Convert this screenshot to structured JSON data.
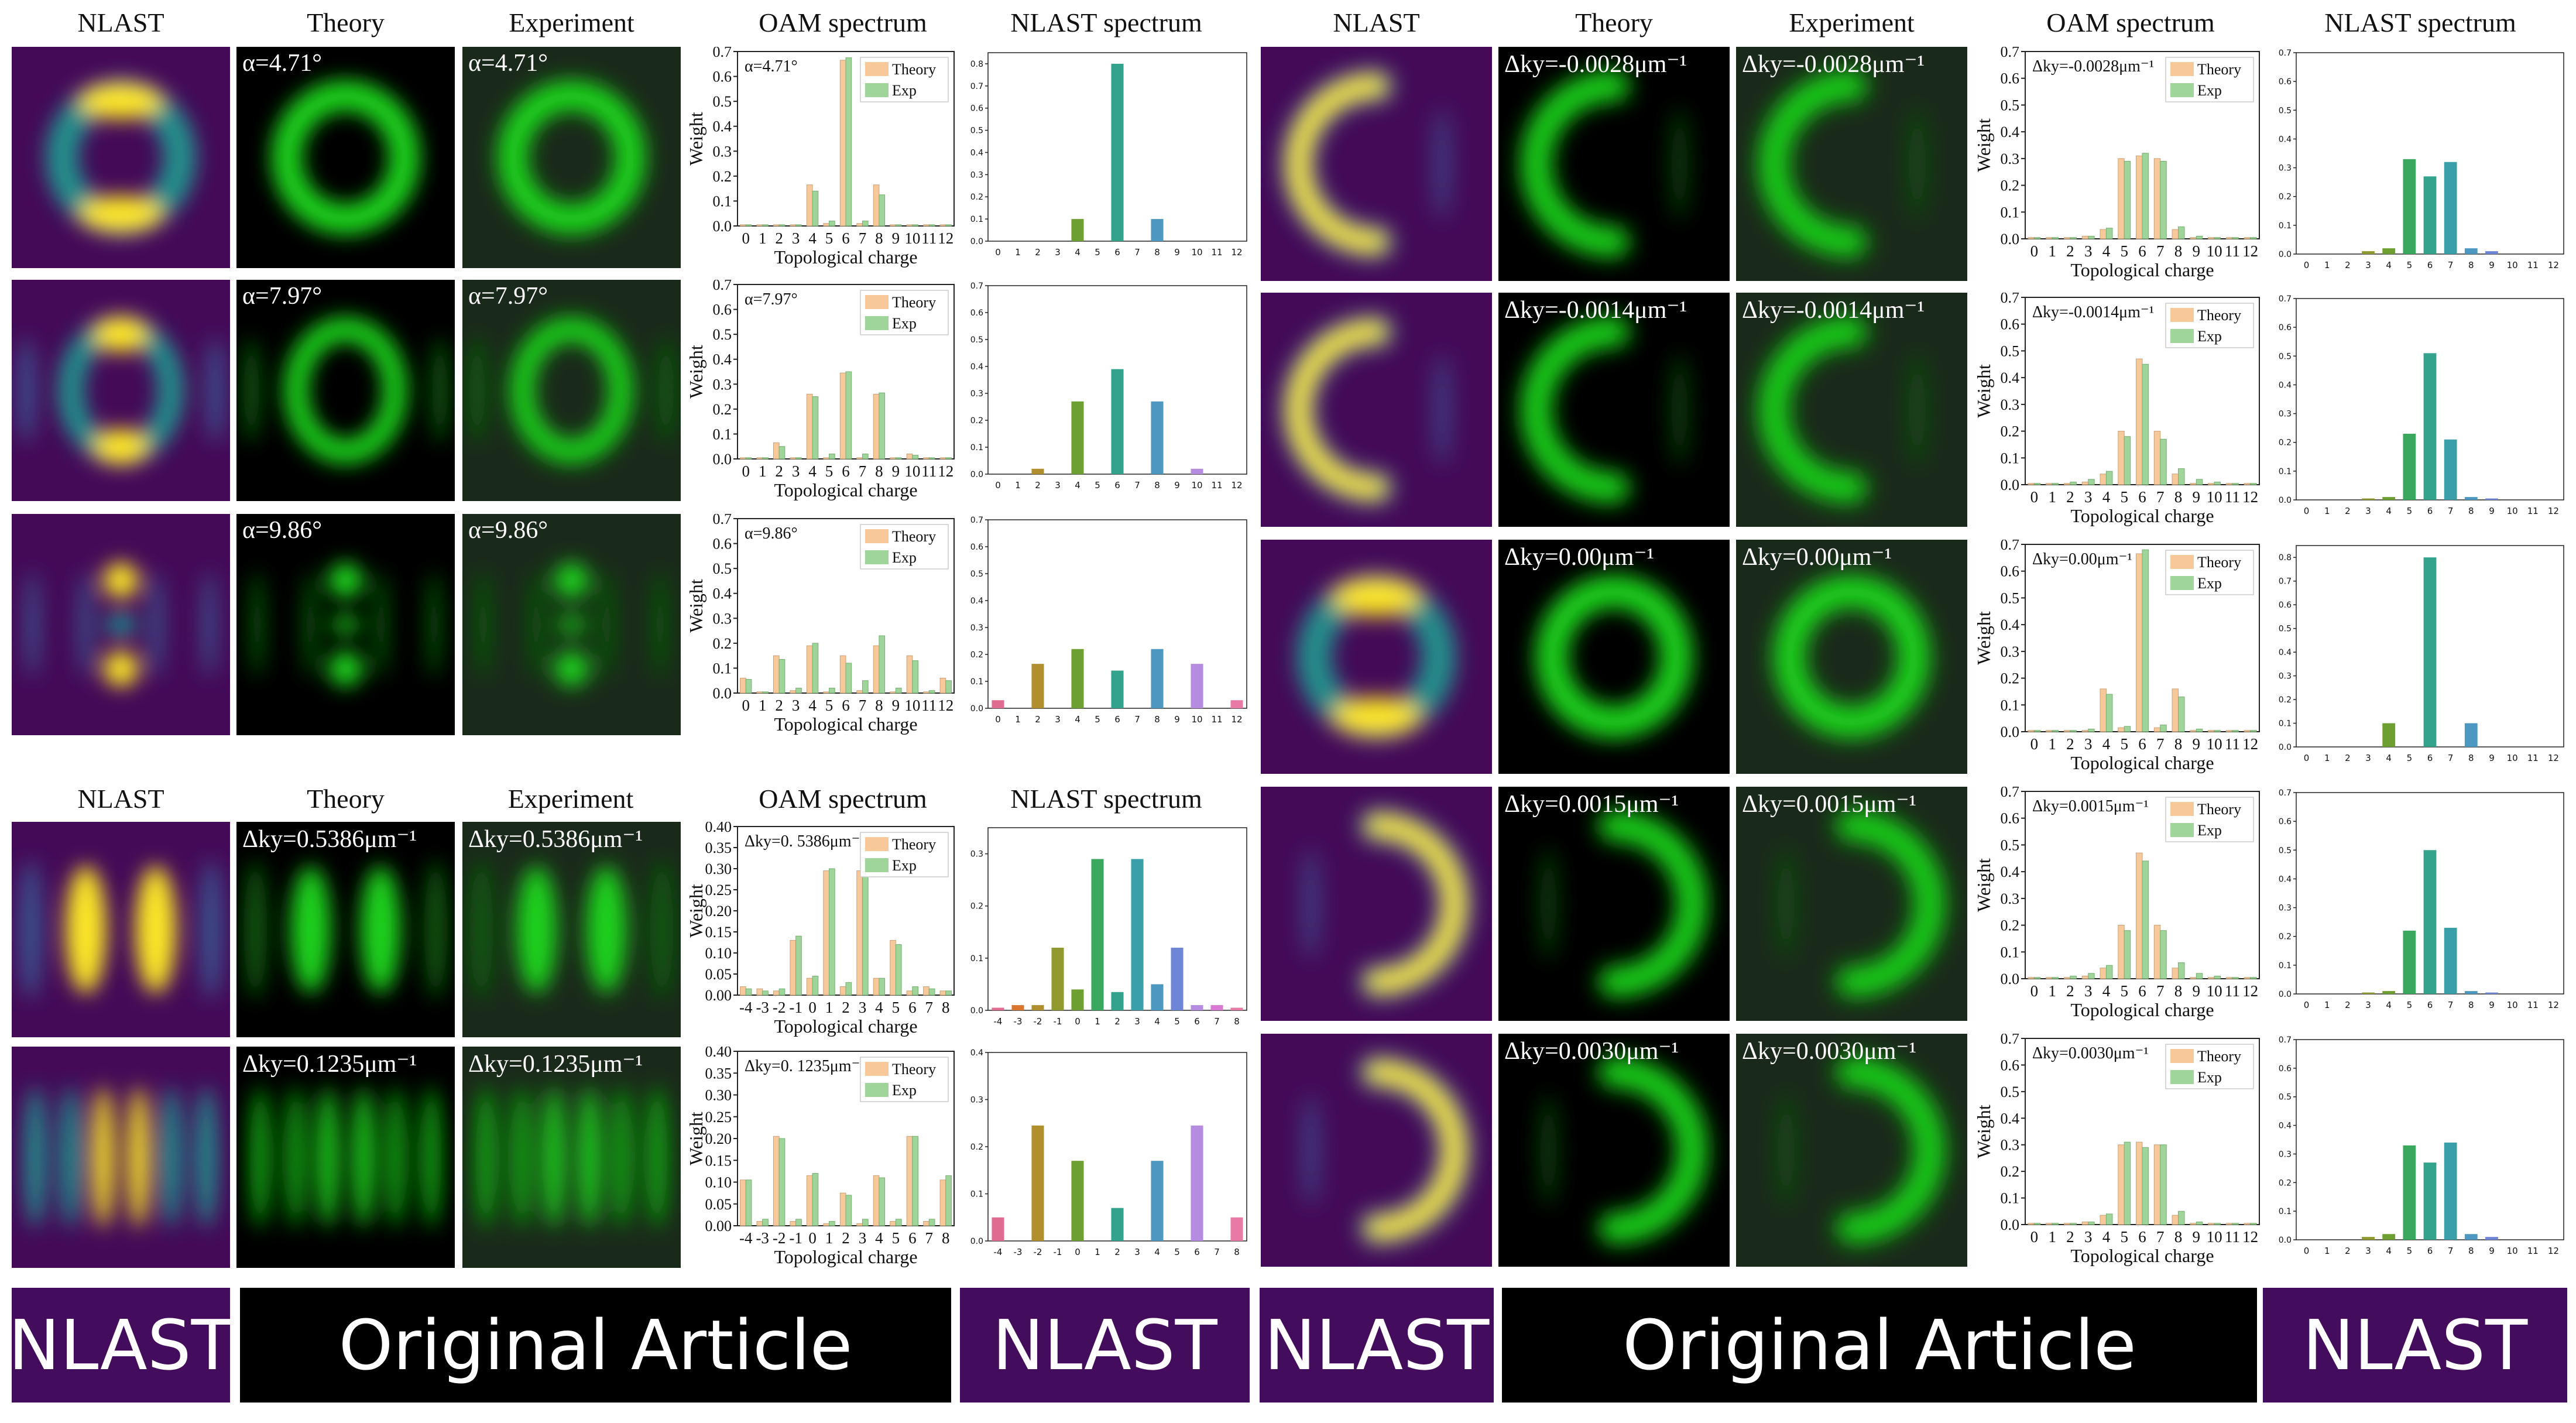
{
  "headers": {
    "nlast": "NLAST",
    "theory": "Theory",
    "experiment": "Experiment",
    "oam": "OAM spectrum",
    "nlast_spec": "NLAST spectrum"
  },
  "axis": {
    "ylabel": "Weight",
    "xlabel": "Topological charge",
    "legend_theory": "Theory",
    "legend_exp": "Exp"
  },
  "chart_data": [
    {
      "type": "bar",
      "panel": "alpha-1",
      "title": "α=4.71°",
      "ylim": [
        0,
        0.7
      ],
      "yticks": [
        "0.0",
        "0.1",
        "0.2",
        "0.3",
        "0.4",
        "0.5",
        "0.6",
        "0.7"
      ],
      "categories": [
        "0",
        "1",
        "2",
        "3",
        "4",
        "5",
        "6",
        "7",
        "8",
        "9",
        "10",
        "11",
        "12"
      ],
      "series": [
        {
          "name": "Theory",
          "values": [
            0.005,
            0.005,
            0.005,
            0.005,
            0.165,
            0.01,
            0.665,
            0.01,
            0.165,
            0.005,
            0.005,
            0.005,
            0.005
          ]
        },
        {
          "name": "Exp",
          "values": [
            0.005,
            0.005,
            0.005,
            0.005,
            0.14,
            0.02,
            0.675,
            0.02,
            0.125,
            0.005,
            0.005,
            0.005,
            0.005
          ]
        }
      ],
      "nlast": {
        "ylim": [
          0,
          0.85
        ],
        "yticks": [
          "0.0",
          "0.1",
          "0.2",
          "0.3",
          "0.4",
          "0.5",
          "0.6",
          "0.7",
          "0.8"
        ],
        "values": [
          0,
          0,
          0,
          0,
          0.1,
          0,
          0.8,
          0,
          0.1,
          0,
          0,
          0,
          0
        ]
      }
    },
    {
      "type": "bar",
      "panel": "alpha-2",
      "title": "α=7.97°",
      "ylim": [
        0,
        0.7
      ],
      "yticks": [
        "0.0",
        "0.1",
        "0.2",
        "0.3",
        "0.4",
        "0.5",
        "0.6",
        "0.7"
      ],
      "categories": [
        "0",
        "1",
        "2",
        "3",
        "4",
        "5",
        "6",
        "7",
        "8",
        "9",
        "10",
        "11",
        "12"
      ],
      "series": [
        {
          "name": "Theory",
          "values": [
            0.005,
            0.005,
            0.065,
            0.005,
            0.26,
            0.005,
            0.345,
            0.005,
            0.26,
            0.005,
            0.02,
            0.005,
            0.005
          ]
        },
        {
          "name": "Exp",
          "values": [
            0.005,
            0.005,
            0.05,
            0.005,
            0.25,
            0.02,
            0.35,
            0.02,
            0.265,
            0.005,
            0.015,
            0.005,
            0.005
          ]
        }
      ],
      "nlast": {
        "ylim": [
          0,
          0.7
        ],
        "yticks": [
          "0.0",
          "0.1",
          "0.2",
          "0.3",
          "0.4",
          "0.5",
          "0.6",
          "0.7"
        ],
        "values": [
          0,
          0,
          0.02,
          0,
          0.27,
          0,
          0.39,
          0,
          0.27,
          0,
          0.02,
          0,
          0
        ]
      }
    },
    {
      "type": "bar",
      "panel": "alpha-3",
      "title": "α=9.86°",
      "ylim": [
        0,
        0.7
      ],
      "yticks": [
        "0.0",
        "0.1",
        "0.2",
        "0.3",
        "0.4",
        "0.5",
        "0.6",
        "0.7"
      ],
      "categories": [
        "0",
        "1",
        "2",
        "3",
        "4",
        "5",
        "6",
        "7",
        "8",
        "9",
        "10",
        "11",
        "12"
      ],
      "series": [
        {
          "name": "Theory",
          "values": [
            0.06,
            0.005,
            0.15,
            0.01,
            0.19,
            0.005,
            0.15,
            0.01,
            0.19,
            0.005,
            0.15,
            0.005,
            0.06
          ]
        },
        {
          "name": "Exp",
          "values": [
            0.055,
            0.005,
            0.135,
            0.02,
            0.2,
            0.02,
            0.12,
            0.05,
            0.23,
            0.02,
            0.13,
            0.01,
            0.05
          ]
        }
      ],
      "nlast": {
        "ylim": [
          0,
          0.7
        ],
        "yticks": [
          "0.0",
          "0.1",
          "0.2",
          "0.3",
          "0.4",
          "0.5",
          "0.6",
          "0.7"
        ],
        "values": [
          0.03,
          0,
          0.165,
          0,
          0.22,
          0,
          0.14,
          0,
          0.22,
          0,
          0.165,
          0,
          0.03
        ]
      }
    },
    {
      "type": "bar",
      "panel": "dky-1",
      "title": "Δky=0. 5386μm⁻¹",
      "ylim": [
        0,
        0.4
      ],
      "yticks": [
        "0.00",
        "0.05",
        "0.10",
        "0.15",
        "0.20",
        "0.25",
        "0.30",
        "0.35",
        "0.40"
      ],
      "categories": [
        "-4",
        "-3",
        "-2",
        "-1",
        "0",
        "1",
        "2",
        "3",
        "4",
        "5",
        "6",
        "7",
        "8"
      ],
      "series": [
        {
          "name": "Theory",
          "values": [
            0.02,
            0.015,
            0.01,
            0.13,
            0.04,
            0.295,
            0.02,
            0.295,
            0.04,
            0.13,
            0.01,
            0.02,
            0.01
          ]
        },
        {
          "name": "Exp",
          "values": [
            0.015,
            0.01,
            0.015,
            0.14,
            0.045,
            0.3,
            0.03,
            0.29,
            0.04,
            0.12,
            0.02,
            0.015,
            0.01
          ]
        }
      ],
      "nlast": {
        "ylim": [
          0,
          0.35
        ],
        "yticks": [
          "0.0",
          "0.1",
          "0.2",
          "0.3"
        ],
        "values": [
          0.005,
          0.01,
          0.01,
          0.12,
          0.04,
          0.29,
          0.035,
          0.29,
          0.05,
          0.12,
          0.01,
          0.01,
          0.005
        ]
      }
    },
    {
      "type": "bar",
      "panel": "dky-2",
      "title": "Δky=0. 1235μm⁻¹",
      "ylim": [
        0,
        0.4
      ],
      "yticks": [
        "0.00",
        "0.05",
        "0.10",
        "0.15",
        "0.20",
        "0.25",
        "0.30",
        "0.35",
        "0.40"
      ],
      "categories": [
        "-4",
        "-3",
        "-2",
        "-1",
        "0",
        "1",
        "2",
        "3",
        "4",
        "5",
        "6",
        "7",
        "8"
      ],
      "series": [
        {
          "name": "Theory",
          "values": [
            0.105,
            0.01,
            0.205,
            0.01,
            0.115,
            0.005,
            0.075,
            0.005,
            0.115,
            0.01,
            0.205,
            0.01,
            0.105
          ]
        },
        {
          "name": "Exp",
          "values": [
            0.105,
            0.015,
            0.2,
            0.015,
            0.12,
            0.01,
            0.07,
            0.015,
            0.11,
            0.015,
            0.205,
            0.015,
            0.115
          ]
        }
      ],
      "nlast": {
        "ylim": [
          0,
          0.4
        ],
        "yticks": [
          "0.0",
          "0.1",
          "0.2",
          "0.3",
          "0.4"
        ],
        "values": [
          0.05,
          0,
          0.245,
          0,
          0.17,
          0,
          0.07,
          0,
          0.17,
          0,
          0.245,
          0,
          0.05
        ]
      }
    },
    {
      "type": "bar",
      "panel": "r-1",
      "title": "Δky=-0.0028μm⁻¹",
      "ylim": [
        0,
        0.7
      ],
      "yticks": [
        "0.0",
        "0.1",
        "0.2",
        "0.3",
        "0.4",
        "0.5",
        "0.6",
        "0.7"
      ],
      "categories": [
        "0",
        "1",
        "2",
        "3",
        "4",
        "5",
        "6",
        "7",
        "8",
        "9",
        "10",
        "11",
        "12"
      ],
      "series": [
        {
          "name": "Theory",
          "values": [
            0.005,
            0.005,
            0.005,
            0.01,
            0.035,
            0.3,
            0.31,
            0.3,
            0.035,
            0.005,
            0.005,
            0.005,
            0.005
          ]
        },
        {
          "name": "Exp",
          "values": [
            0.005,
            0.005,
            0.005,
            0.01,
            0.04,
            0.29,
            0.32,
            0.29,
            0.045,
            0.01,
            0.005,
            0.005,
            0.005
          ]
        }
      ],
      "nlast": {
        "ylim": [
          0,
          0.7
        ],
        "yticks": [
          "0.0",
          "0.1",
          "0.2",
          "0.3",
          "0.4",
          "0.5",
          "0.6",
          "0.7"
        ],
        "values": [
          0,
          0,
          0,
          0.01,
          0.02,
          0.33,
          0.27,
          0.32,
          0.02,
          0.01,
          0,
          0,
          0
        ]
      }
    },
    {
      "type": "bar",
      "panel": "r-2",
      "title": "Δky=-0.0014μm⁻¹",
      "ylim": [
        0,
        0.7
      ],
      "yticks": [
        "0.0",
        "0.1",
        "0.2",
        "0.3",
        "0.4",
        "0.5",
        "0.6",
        "0.7"
      ],
      "categories": [
        "0",
        "1",
        "2",
        "3",
        "4",
        "5",
        "6",
        "7",
        "8",
        "9",
        "10",
        "11",
        "12"
      ],
      "series": [
        {
          "name": "Theory",
          "values": [
            0.005,
            0.005,
            0.005,
            0.01,
            0.04,
            0.2,
            0.47,
            0.2,
            0.04,
            0.005,
            0.005,
            0.005,
            0.005
          ]
        },
        {
          "name": "Exp",
          "values": [
            0.005,
            0.005,
            0.01,
            0.02,
            0.05,
            0.18,
            0.45,
            0.17,
            0.06,
            0.02,
            0.01,
            0.005,
            0.005
          ]
        }
      ],
      "nlast": {
        "ylim": [
          0,
          0.7
        ],
        "yticks": [
          "0.0",
          "0.1",
          "0.2",
          "0.3",
          "0.4",
          "0.5",
          "0.6",
          "0.7"
        ],
        "values": [
          0,
          0,
          0,
          0.005,
          0.01,
          0.23,
          0.51,
          0.21,
          0.01,
          0.005,
          0,
          0,
          0
        ]
      }
    },
    {
      "type": "bar",
      "panel": "r-3",
      "title": "Δky=0.00μm⁻¹",
      "ylim": [
        0,
        0.7
      ],
      "yticks": [
        "0.0",
        "0.1",
        "0.2",
        "0.3",
        "0.4",
        "0.5",
        "0.6",
        "0.7"
      ],
      "categories": [
        "0",
        "1",
        "2",
        "3",
        "4",
        "5",
        "6",
        "7",
        "8",
        "9",
        "10",
        "11",
        "12"
      ],
      "series": [
        {
          "name": "Theory",
          "values": [
            0.005,
            0.005,
            0.005,
            0.005,
            0.16,
            0.015,
            0.665,
            0.015,
            0.16,
            0.005,
            0.005,
            0.005,
            0.005
          ]
        },
        {
          "name": "Exp",
          "values": [
            0.005,
            0.005,
            0.005,
            0.01,
            0.14,
            0.02,
            0.68,
            0.025,
            0.13,
            0.01,
            0.005,
            0.005,
            0.005
          ]
        }
      ],
      "nlast": {
        "ylim": [
          0,
          0.85
        ],
        "yticks": [
          "0.0",
          "0.1",
          "0.2",
          "0.3",
          "0.4",
          "0.5",
          "0.6",
          "0.7",
          "0.8"
        ],
        "values": [
          0,
          0,
          0,
          0,
          0.1,
          0,
          0.8,
          0,
          0.1,
          0,
          0,
          0,
          0
        ]
      }
    },
    {
      "type": "bar",
      "panel": "r-4",
      "title": "Δky=0.0015μm⁻¹",
      "ylim": [
        0,
        0.7
      ],
      "yticks": [
        "0.0",
        "0.1",
        "0.2",
        "0.3",
        "0.4",
        "0.5",
        "0.6",
        "0.7"
      ],
      "categories": [
        "0",
        "1",
        "2",
        "3",
        "4",
        "5",
        "6",
        "7",
        "8",
        "9",
        "10",
        "11",
        "12"
      ],
      "series": [
        {
          "name": "Theory",
          "values": [
            0.005,
            0.005,
            0.005,
            0.01,
            0.04,
            0.2,
            0.47,
            0.2,
            0.04,
            0.005,
            0.005,
            0.005,
            0.005
          ]
        },
        {
          "name": "Exp",
          "values": [
            0.005,
            0.005,
            0.01,
            0.02,
            0.05,
            0.18,
            0.44,
            0.18,
            0.06,
            0.02,
            0.01,
            0.005,
            0.005
          ]
        }
      ],
      "nlast": {
        "ylim": [
          0,
          0.7
        ],
        "yticks": [
          "0.0",
          "0.1",
          "0.2",
          "0.3",
          "0.4",
          "0.5",
          "0.6",
          "0.7"
        ],
        "values": [
          0,
          0,
          0,
          0.005,
          0.01,
          0.22,
          0.5,
          0.23,
          0.01,
          0.005,
          0,
          0,
          0
        ]
      }
    },
    {
      "type": "bar",
      "panel": "r-5",
      "title": "Δky=0.0030μm⁻¹",
      "ylim": [
        0,
        0.7
      ],
      "yticks": [
        "0.0",
        "0.1",
        "0.2",
        "0.3",
        "0.4",
        "0.5",
        "0.6",
        "0.7"
      ],
      "categories": [
        "0",
        "1",
        "2",
        "3",
        "4",
        "5",
        "6",
        "7",
        "8",
        "9",
        "10",
        "11",
        "12"
      ],
      "series": [
        {
          "name": "Theory",
          "values": [
            0.005,
            0.005,
            0.005,
            0.01,
            0.035,
            0.3,
            0.31,
            0.3,
            0.035,
            0.005,
            0.005,
            0.005,
            0.005
          ]
        },
        {
          "name": "Exp",
          "values": [
            0.005,
            0.005,
            0.005,
            0.01,
            0.04,
            0.31,
            0.29,
            0.3,
            0.05,
            0.01,
            0.005,
            0.005,
            0.005
          ]
        }
      ],
      "nlast": {
        "ylim": [
          0,
          0.7
        ],
        "yticks": [
          "0.0",
          "0.1",
          "0.2",
          "0.3",
          "0.4",
          "0.5",
          "0.6",
          "0.7"
        ],
        "values": [
          0,
          0,
          0,
          0.01,
          0.02,
          0.33,
          0.27,
          0.34,
          0.02,
          0.01,
          0,
          0,
          0
        ]
      }
    }
  ],
  "images": [
    {
      "panel": "alpha-1",
      "label": "α=4.71°",
      "pattern": "ring"
    },
    {
      "panel": "alpha-2",
      "label": "α=7.97°",
      "pattern": "ring2"
    },
    {
      "panel": "alpha-3",
      "label": "α=9.86°",
      "pattern": "dots"
    },
    {
      "panel": "dky-1",
      "label": "Δky=0.5386μm⁻¹",
      "pattern": "split"
    },
    {
      "panel": "dky-2",
      "label": "Δky=0.1235μm⁻¹",
      "pattern": "grid"
    },
    {
      "panel": "r-1",
      "label": "Δky=-0.0028μm⁻¹",
      "pattern": "crescent-left"
    },
    {
      "panel": "r-2",
      "label": "Δky=-0.0014μm⁻¹",
      "pattern": "crescent-left"
    },
    {
      "panel": "r-3",
      "label": "Δky=0.00μm⁻¹",
      "pattern": "ring"
    },
    {
      "panel": "r-4",
      "label": "Δky=0.0015μm⁻¹",
      "pattern": "crescent-right"
    },
    {
      "panel": "r-5",
      "label": "Δky=0.0030μm⁻¹",
      "pattern": "crescent-right"
    }
  ],
  "banners": {
    "nlast": "NLAST",
    "original": "Original Article"
  },
  "colors": {
    "theory_bar": "#f7c99a",
    "exp_bar": "#9fd49a",
    "banner_purple": "#430c5c",
    "nlast_palette": [
      "#e06b91",
      "#d9772f",
      "#b0902e",
      "#909a2e",
      "#6da030",
      "#3aa85f",
      "#33a38d",
      "#3a9fa8",
      "#4d98c1",
      "#6f86d6",
      "#b58ce0",
      "#d97ad2",
      "#e87aa6"
    ]
  }
}
